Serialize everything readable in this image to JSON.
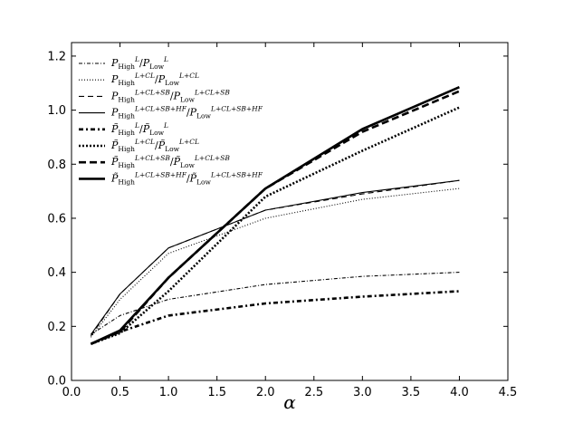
{
  "chart_data": {
    "type": "line",
    "xlabel": "α",
    "ylabel": "",
    "xlim": [
      0.0,
      4.5
    ],
    "ylim": [
      0.0,
      1.25
    ],
    "xticks": [
      "0.0",
      "0.5",
      "1.0",
      "1.5",
      "2.0",
      "2.5",
      "3.0",
      "3.5",
      "4.0",
      "4.5"
    ],
    "yticks": [
      "0.0",
      "0.2",
      "0.4",
      "0.6",
      "0.8",
      "1.0",
      "1.2"
    ],
    "grid": false,
    "legend_position": "top-left",
    "x": [
      0.2,
      0.5,
      1.0,
      2.0,
      3.0,
      4.0
    ],
    "series": [
      {
        "name": "P_High^L/P_Low^L",
        "base": "P",
        "sup": "L",
        "style": "dashdot",
        "weight": "thin",
        "values": [
          0.17,
          0.24,
          0.3,
          0.355,
          0.385,
          0.4
        ]
      },
      {
        "name": "P_High^{L+CL}/P_Low^{L+CL}",
        "base": "P",
        "sup": "L+CL",
        "style": "dotted",
        "weight": "thin",
        "values": [
          0.16,
          0.3,
          0.47,
          0.6,
          0.67,
          0.71
        ]
      },
      {
        "name": "P_High^{L+CL+SB}/P_Low^{L+CL+SB}",
        "base": "P",
        "sup": "L+CL+SB",
        "style": "dashed",
        "weight": "thin",
        "values": [
          0.165,
          0.32,
          0.49,
          0.63,
          0.69,
          0.74
        ]
      },
      {
        "name": "P_High^{L+CL+SB+HF}/P_Low^{L+CL+SB+HF}",
        "base": "P",
        "sup": "L+CL+SB+HF",
        "style": "solid",
        "weight": "thin",
        "values": [
          0.17,
          0.32,
          0.49,
          0.63,
          0.695,
          0.74
        ]
      },
      {
        "name": "P̃_High^L/P̃_Low^L",
        "base": "P̃",
        "sup": "L",
        "style": "dashdot",
        "weight": "thick",
        "values": [
          0.135,
          0.18,
          0.24,
          0.285,
          0.31,
          0.33
        ]
      },
      {
        "name": "P̃_High^{L+CL}/P̃_Low^{L+CL}",
        "base": "P̃",
        "sup": "L+CL",
        "style": "dotted",
        "weight": "thick",
        "values": [
          0.135,
          0.175,
          0.33,
          0.68,
          0.85,
          1.01
        ]
      },
      {
        "name": "P̃_High^{L+CL+SB}/P̃_Low^{L+CL+SB}",
        "base": "P̃",
        "sup": "L+CL+SB",
        "style": "dashed",
        "weight": "thick",
        "values": [
          0.135,
          0.18,
          0.38,
          0.71,
          0.92,
          1.07
        ]
      },
      {
        "name": "P̃_High^{L+CL+SB+HF}/P̃_Low^{L+CL+SB+HF}",
        "base": "P̃",
        "sup": "L+CL+SB+HF",
        "style": "solid",
        "weight": "thick",
        "values": [
          0.135,
          0.185,
          0.38,
          0.71,
          0.93,
          1.085
        ]
      }
    ]
  }
}
